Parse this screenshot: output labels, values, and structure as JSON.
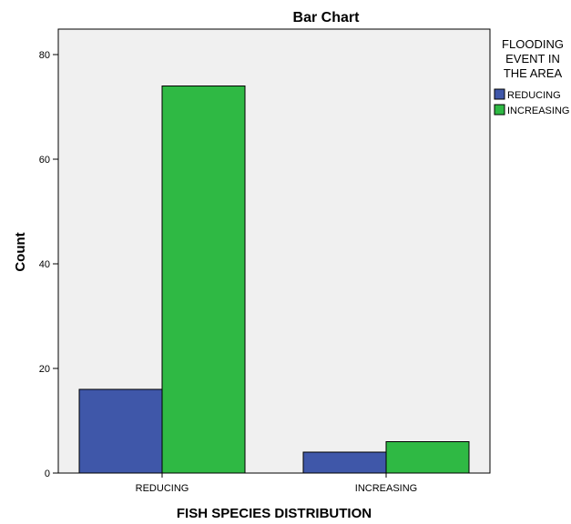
{
  "chart_data": {
    "type": "bar",
    "title": "Bar Chart",
    "xlabel": "FISH SPECIES DISTRIBUTION",
    "ylabel": "Count",
    "categories": [
      "REDUCING",
      "INCREASING"
    ],
    "series": [
      {
        "name": "REDUCING",
        "values": [
          16,
          4
        ],
        "color": "#3f57a9"
      },
      {
        "name": "INCREASING",
        "values": [
          74,
          6
        ],
        "color": "#2fb944"
      }
    ],
    "ylim": [
      0,
      84
    ],
    "yticks": [
      0,
      20,
      40,
      60,
      80
    ],
    "grid": false,
    "legend": {
      "title_lines": [
        "FLOODING",
        "EVENT IN",
        "THE AREA"
      ],
      "placement": "top-right, outside plot"
    },
    "plot_background": "#f0f0f0"
  }
}
